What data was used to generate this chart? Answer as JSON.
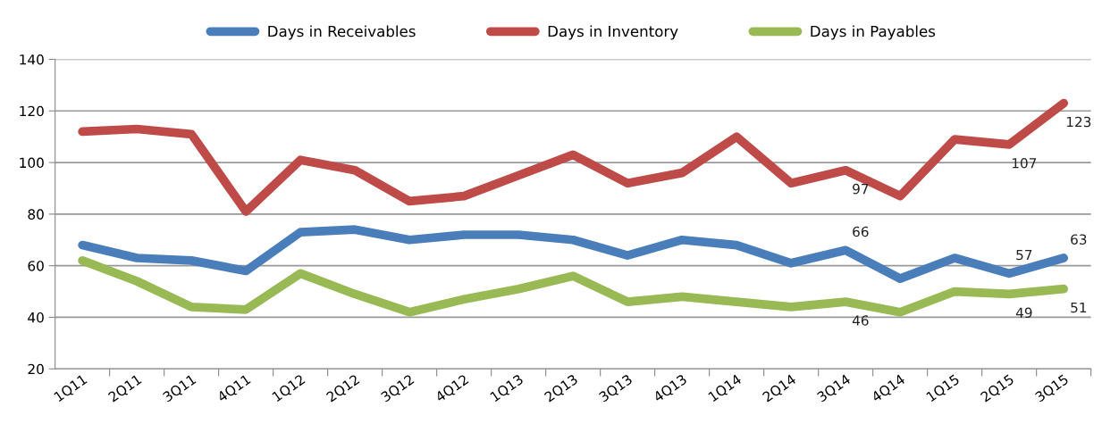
{
  "chart_data": {
    "type": "line",
    "categories": [
      "1Q11",
      "2Q11",
      "3Q11",
      "4Q11",
      "1Q12",
      "2Q12",
      "3Q12",
      "4Q12",
      "1Q13",
      "2Q13",
      "3Q13",
      "4Q13",
      "1Q14",
      "2Q14",
      "3Q14",
      "4Q14",
      "1Q15",
      "2Q15",
      "3Q15"
    ],
    "series": [
      {
        "name": "Days in Receivables",
        "color": "#4a7ebb",
        "values": [
          68,
          63,
          62,
          58,
          73,
          74,
          70,
          72,
          72,
          70,
          64,
          70,
          68,
          61,
          66,
          55,
          63,
          57,
          63
        ],
        "value_labels": [
          null,
          null,
          null,
          null,
          null,
          null,
          null,
          null,
          null,
          null,
          null,
          null,
          null,
          null,
          "66",
          null,
          null,
          "57",
          "63"
        ]
      },
      {
        "name": "Days in Inventory",
        "color": "#be4b48",
        "values": [
          112,
          113,
          111,
          81,
          101,
          97,
          85,
          87,
          95,
          103,
          92,
          96,
          110,
          92,
          97,
          87,
          109,
          107,
          123
        ],
        "value_labels": [
          null,
          null,
          null,
          null,
          null,
          null,
          null,
          null,
          null,
          null,
          null,
          null,
          null,
          null,
          "97",
          null,
          null,
          "107",
          "123"
        ]
      },
      {
        "name": "Days in Payables",
        "color": "#98b954",
        "values": [
          62,
          54,
          44,
          43,
          57,
          49,
          42,
          47,
          51,
          56,
          46,
          48,
          46,
          44,
          46,
          42,
          50,
          49,
          51
        ],
        "value_labels": [
          null,
          null,
          null,
          null,
          null,
          null,
          null,
          null,
          null,
          null,
          null,
          null,
          null,
          null,
          "46",
          null,
          null,
          "49",
          "51"
        ]
      }
    ],
    "ylim": [
      20,
      140
    ],
    "yticks": [
      20,
      40,
      60,
      80,
      100,
      120,
      140
    ],
    "grid": "y",
    "legend": "top",
    "marker": "none",
    "line_style": "solid"
  }
}
